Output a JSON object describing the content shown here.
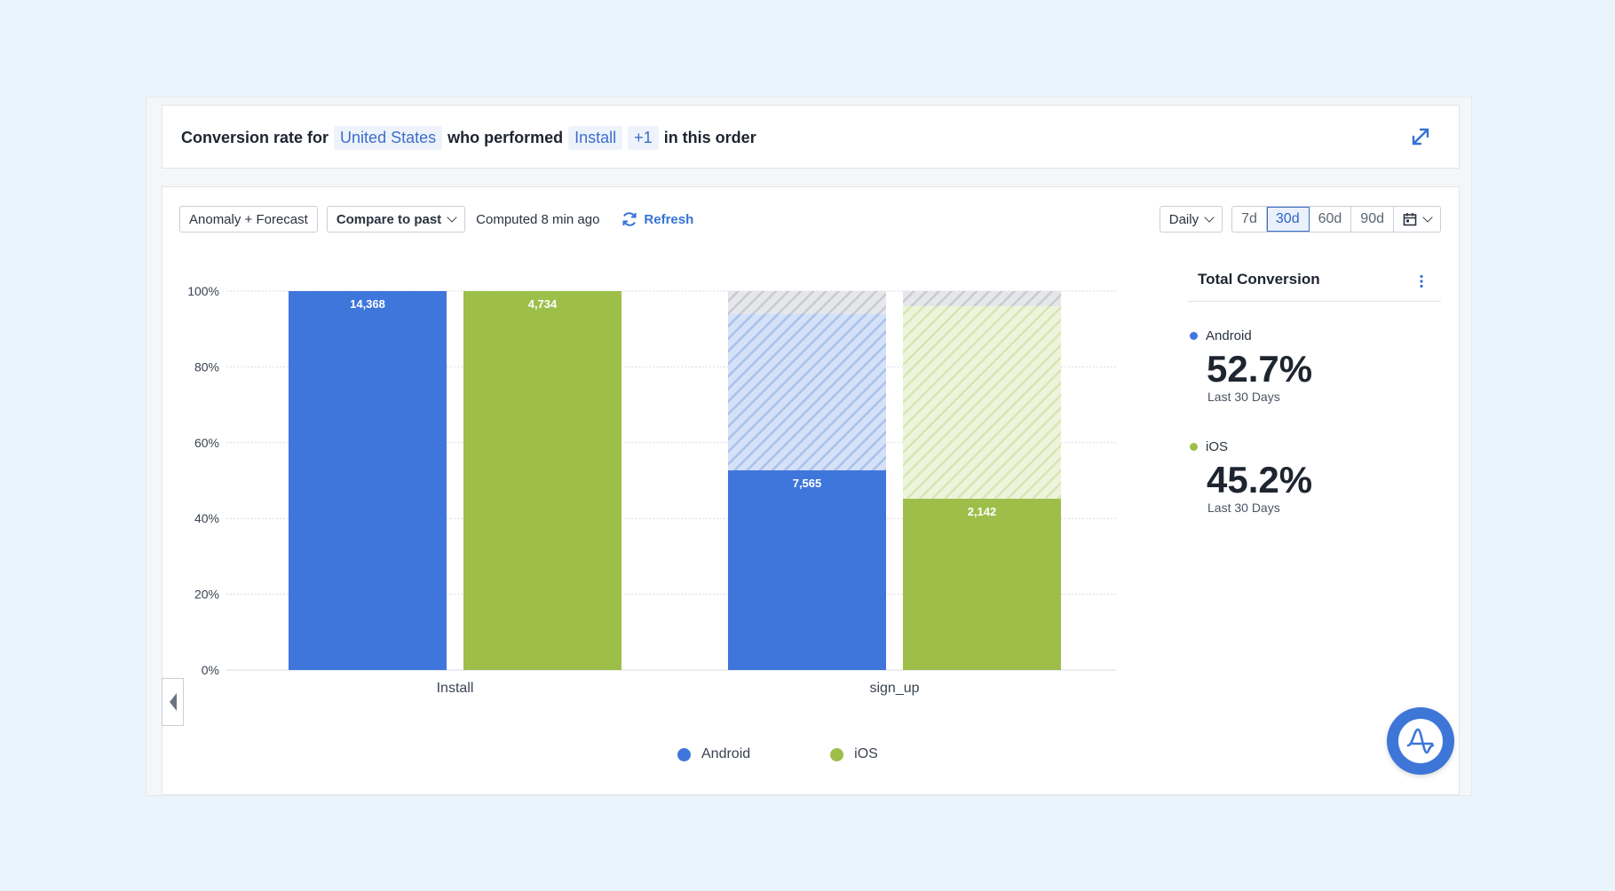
{
  "query": {
    "prefix": "Conversion rate for",
    "segment": "United States",
    "middle": "who performed",
    "event": "Install",
    "extra_events": "+1",
    "suffix": "in this order"
  },
  "toolbar": {
    "anomaly_label": "Anomaly + Forecast",
    "compare_label": "Compare to past",
    "computed_text": "Computed 8 min ago",
    "refresh_label": "Refresh",
    "interval_label": "Daily",
    "ranges": [
      "7d",
      "30d",
      "60d",
      "90d"
    ],
    "active_range": "30d"
  },
  "side_panel": {
    "title": "Total Conversion",
    "metrics": [
      {
        "label": "Android",
        "value": "52.7%",
        "sub": "Last 30 Days",
        "color": "#3f76db"
      },
      {
        "label": "iOS",
        "value": "45.2%",
        "sub": "Last 30 Days",
        "color": "#9dbf4a"
      }
    ]
  },
  "legend": [
    {
      "label": "Android",
      "color": "#3f76db"
    },
    {
      "label": "iOS",
      "color": "#9dbf4a"
    }
  ],
  "chart_data": {
    "type": "bar",
    "categories": [
      "Install",
      "sign_up"
    ],
    "y_ticks": [
      "100%",
      "80%",
      "60%",
      "40%",
      "20%",
      "0%"
    ],
    "ylim": [
      0,
      100
    ],
    "grid": true,
    "legend_position": "bottom",
    "series": [
      {
        "name": "Android",
        "color": "#3f76db",
        "values": [
          100,
          52.7
        ],
        "counts": [
          "14,368",
          "7,565"
        ],
        "dropoff_to": [
          null,
          94
        ]
      },
      {
        "name": "iOS",
        "color": "#9dbf4a",
        "values": [
          100,
          45.2
        ],
        "counts": [
          "4,734",
          "2,142"
        ],
        "dropoff_to": [
          null,
          96
        ]
      }
    ]
  }
}
